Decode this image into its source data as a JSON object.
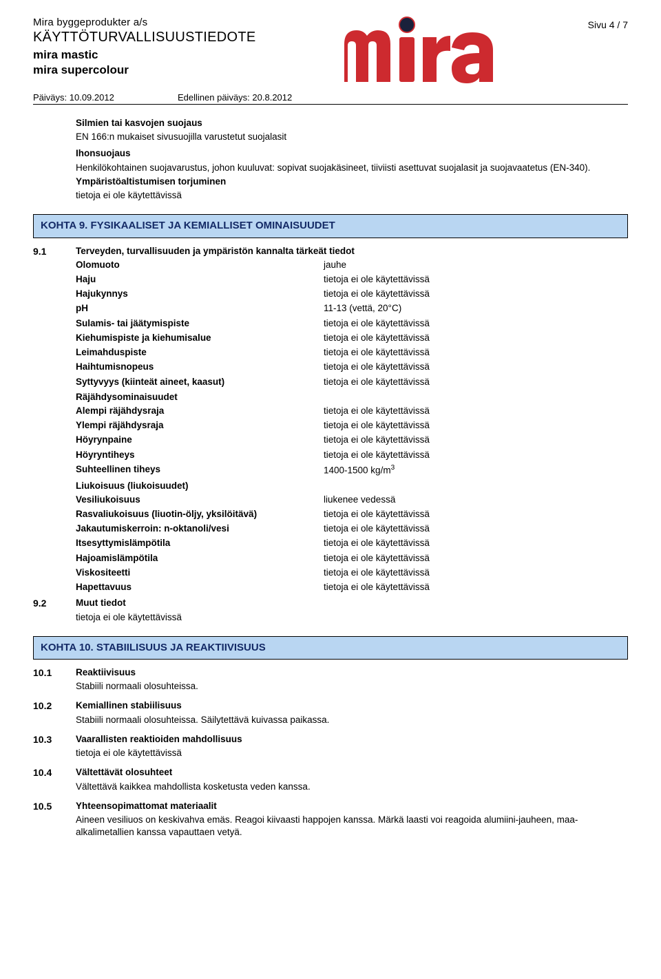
{
  "header": {
    "company": "Mira byggeprodukter a/s",
    "doc_title": "KÄYTTÖTURVALLISUUSTIEDOTE",
    "product1": "mira mastic",
    "product2": "mira supercolour",
    "date_label": "Päiväys: 10.09.2012",
    "prev_date_label": "Edellinen päiväys: 20.8.2012",
    "page_num": "Sivu  4 / 7"
  },
  "logo": {
    "text_color": "#cd2a2f",
    "dot_fill": "#19213b",
    "dot_rim": "#cd2a2f"
  },
  "intro": {
    "t1": "Silmien tai kasvojen suojaus",
    "t2": "EN 166:n mukaiset sivusuojilla varustetut suojalasit",
    "t3": "Ihonsuojaus",
    "t4": "Henkilökohtainen suojavarustus, johon kuuluvat: sopivat suojakäsineet, tiiviisti asettuvat suojalasit ja suojavaatetus (EN-340).",
    "t5": "Ympäristöaltistumisen torjuminen",
    "t6": "tietoja ei ole käytettävissä"
  },
  "sections": {
    "s9_title": "KOHTA 9. FYSIKAALISET JA KEMIALLISET OMINAISUUDET",
    "s10_title": "KOHTA 10. STABIILISUUS JA REAKTIIVISUUS"
  },
  "s9_1": {
    "num": "9.1",
    "lead": "Terveyden, turvallisuuden ja ympäristön kannalta tärkeät tiedot",
    "rows": [
      {
        "k": "Olomuoto",
        "v": "jauhe"
      },
      {
        "k": "Haju",
        "v": "tietoja ei ole käytettävissä"
      },
      {
        "k": "Hajukynnys",
        "v": "tietoja ei ole käytettävissä"
      },
      {
        "k": "pH",
        "v": "11-13  (vettä, 20°C)"
      },
      {
        "k": "Sulamis- tai jäätymispiste",
        "v": "tietoja ei ole käytettävissä"
      },
      {
        "k": "Kiehumispiste ja kiehumisalue",
        "v": "tietoja ei ole käytettävissä"
      },
      {
        "k": "Leimahduspiste",
        "v": "tietoja ei ole käytettävissä"
      },
      {
        "k": "Haihtumisnopeus",
        "v": "tietoja ei ole käytettävissä"
      },
      {
        "k": "Syttyvyys (kiinteät aineet, kaasut)",
        "v": "tietoja ei ole käytettävissä"
      }
    ],
    "sub1": "Räjähdysominaisuudet",
    "rows2": [
      {
        "k": "Alempi räjähdysraja",
        "v": "tietoja ei ole käytettävissä"
      },
      {
        "k": "Ylempi räjähdysraja",
        "v": "tietoja ei ole käytettävissä"
      },
      {
        "k": "Höyrynpaine",
        "v": "tietoja ei ole käytettävissä"
      },
      {
        "k": "Höyryntiheys",
        "v": "tietoja ei ole käytettävissä"
      },
      {
        "k": "Suhteellinen tiheys",
        "v": "1400-1500 kg/m",
        "sup": "3"
      }
    ],
    "sub2": "Liukoisuus (liukoisuudet)",
    "rows3": [
      {
        "k": "Vesiliukoisuus",
        "v": "liukenee vedessä"
      },
      {
        "k": "Rasvaliukoisuus (liuotin-öljy, yksilöitävä)",
        "v": "tietoja ei ole käytettävissä"
      },
      {
        "k": "Jakautumiskerroin: n-oktanoli/vesi",
        "v": "tietoja ei ole käytettävissä"
      },
      {
        "k": "Itsesyttymislämpötila",
        "v": "tietoja ei ole käytettävissä"
      },
      {
        "k": "Hajoamislämpötila",
        "v": "tietoja ei ole käytettävissä"
      },
      {
        "k": "Viskositeetti",
        "v": "tietoja ei ole käytettävissä"
      },
      {
        "k": "Hapettavuus",
        "v": "tietoja ei ole käytettävissä"
      }
    ]
  },
  "s9_2": {
    "num": "9.2",
    "lead": "Muut tiedot",
    "text": "tietoja ei ole käytettävissä"
  },
  "s10": [
    {
      "num": "10.1",
      "lead": "Reaktiivisuus",
      "text": "Stabiili normaali olosuhteissa."
    },
    {
      "num": "10.2",
      "lead": "Kemiallinen stabiilisuus",
      "text": "Stabiili normaali olosuhteissa. Säilytettävä kuivassa paikassa."
    },
    {
      "num": "10.3",
      "lead": "Vaarallisten reaktioiden mahdollisuus",
      "text": "tietoja ei ole käytettävissä"
    },
    {
      "num": "10.4",
      "lead": "Vältettävät olosuhteet",
      "text": "Vältettävä kaikkea mahdollista kosketusta veden kanssa."
    },
    {
      "num": "10.5",
      "lead": "Yhteensopimattomat materiaalit",
      "text": "Aineen vesiliuos on keskivahva emäs. Reagoi kiivaasti happojen kanssa. Märkä laasti voi reagoida alumiini-jauheen, maa-alkalimetallien kanssa vapauttaen vetyä."
    }
  ]
}
